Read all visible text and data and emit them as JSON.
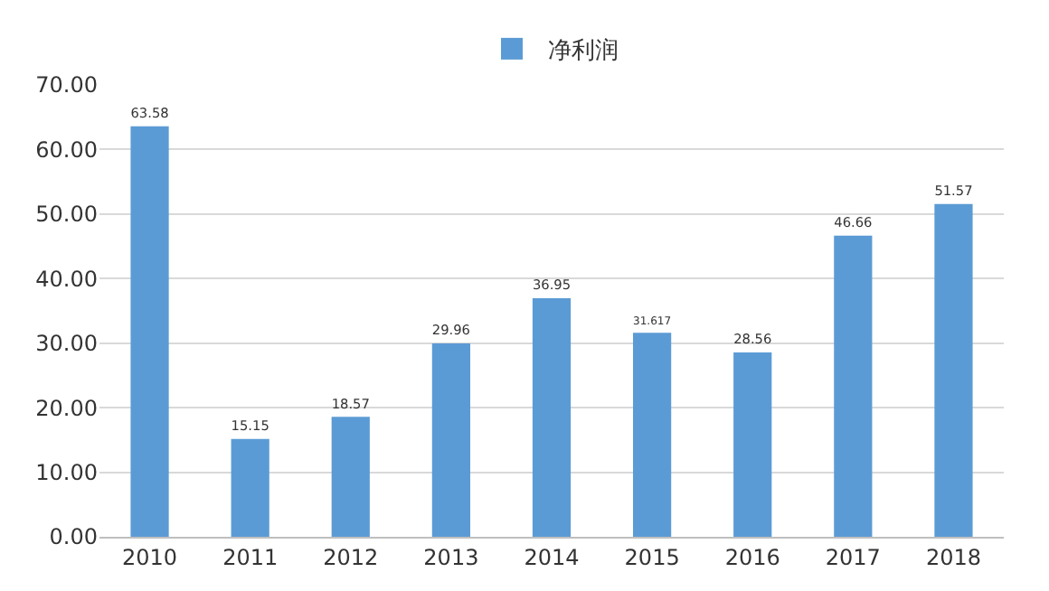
{
  "chart_data": {
    "type": "bar",
    "categories": [
      "2010",
      "2011",
      "2012",
      "2013",
      "2014",
      "2015",
      "2016",
      "2017",
      "2018"
    ],
    "series": [
      {
        "name": "净利润",
        "color": "#5b9bd5",
        "values": [
          63.58,
          15.15,
          18.57,
          29.96,
          36.95,
          31.617,
          28.56,
          46.66,
          51.57
        ]
      }
    ],
    "ylim": [
      0,
      70
    ],
    "yticks": [
      {
        "value": 0,
        "label": "0.00"
      },
      {
        "value": 10,
        "label": "10.00"
      },
      {
        "value": 20,
        "label": "20.00"
      },
      {
        "value": 30,
        "label": "30.00"
      },
      {
        "value": 40,
        "label": "40.00"
      },
      {
        "value": 50,
        "label": "50.00"
      },
      {
        "value": 60,
        "label": "60.00"
      },
      {
        "value": 70,
        "label": "70.00"
      }
    ],
    "grid": "y",
    "legend": "top",
    "data_labels": true
  }
}
